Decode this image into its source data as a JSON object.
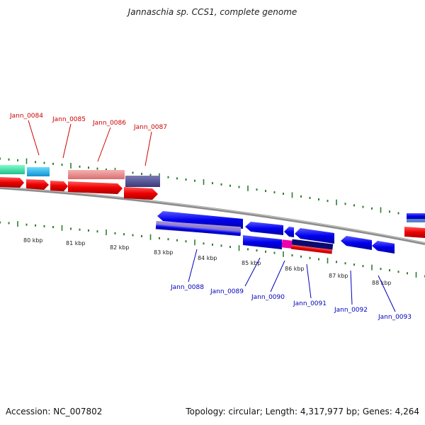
{
  "title": "Jannaschia sp. CCS1, complete genome",
  "footer": {
    "accession": "Accession: NC_007802",
    "summary": "Topology: circular; Length: 4,317,977 bp; Genes: 4,264"
  },
  "colors": {
    "forward_gene_label": "#cc0000",
    "reverse_gene_label": "#0000bb",
    "backbone": "#888888",
    "tick": "#2e7d32"
  },
  "scale_labels": [
    "80 kbp",
    "81 kbp",
    "82 kbp",
    "83 kbp",
    "84 kbp",
    "85 kbp",
    "86 kbp",
    "87 kbp",
    "88 kbp"
  ],
  "forward_genes": [
    {
      "label": "Jann_0084"
    },
    {
      "label": "Jann_0085"
    },
    {
      "label": "Jann_0086"
    },
    {
      "label": "Jann_0087"
    }
  ],
  "reverse_genes": [
    {
      "label": "Jann_0088"
    },
    {
      "label": "Jann_0089"
    },
    {
      "label": "Jann_0090"
    },
    {
      "label": "Jann_0091"
    },
    {
      "label": "Jann_0092"
    },
    {
      "label": "Jann_0093"
    }
  ]
}
